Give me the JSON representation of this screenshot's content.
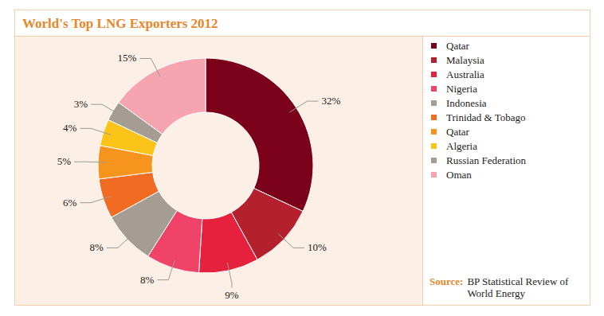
{
  "chart_data": {
    "type": "pie",
    "title": "World's Top LNG Exporters 2012",
    "categories": [
      "Qatar",
      "Malaysia",
      "Australia",
      "Nigeria",
      "Indonesia",
      "Trinidad & Tobago",
      "Qatar",
      "Algeria",
      "Russian Federation",
      "Oman"
    ],
    "values": [
      32,
      10,
      9,
      8,
      8,
      6,
      5,
      4,
      3,
      15
    ],
    "value_labels": [
      "32%",
      "10%",
      "9%",
      "8%",
      "8%",
      "6%",
      "5%",
      "4%",
      "3%",
      "15%"
    ],
    "colors": [
      "#7b0019",
      "#b5202e",
      "#e5213d",
      "#ef4468",
      "#a59d94",
      "#f26b22",
      "#f7941e",
      "#fcc419",
      "#a59d94",
      "#f6a5b0"
    ],
    "data_labels": true,
    "legend": "right",
    "source": {
      "label": "Source:",
      "text": "BP Statistical Review of World Energy"
    }
  }
}
